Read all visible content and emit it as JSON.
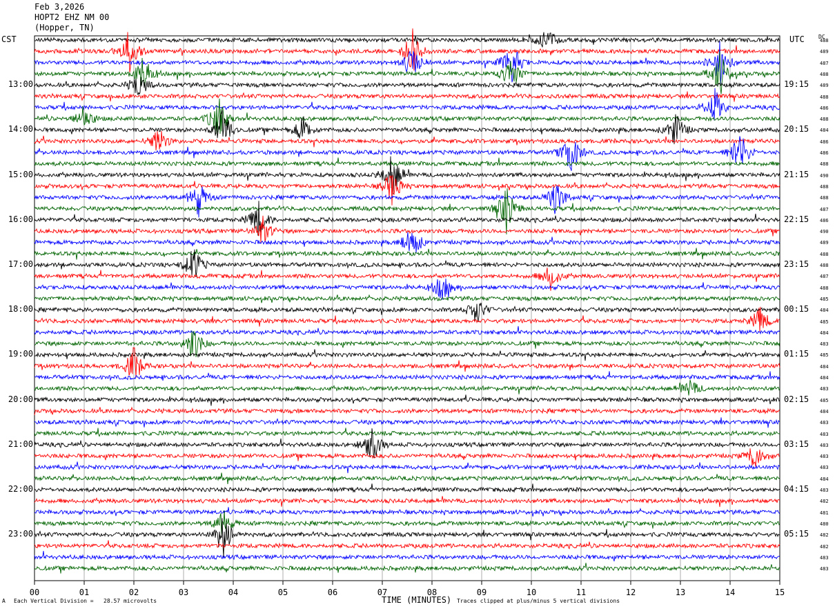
{
  "header": {
    "date": "Feb 3,2026",
    "station": "HOPT2 EHZ NM 00",
    "location": "(Hopper, TN)"
  },
  "labels": {
    "left_tz": "CST",
    "right_tz": "UTC",
    "dc": "DC",
    "x_title": "TIME (MINUTES)",
    "scale_note": "Each Vertical Division =   28.57 microvolts",
    "clip_note": "Traces clipped at plus/minus 5 vertical divisions",
    "corner_mark": "A"
  },
  "chart_data": {
    "type": "line",
    "title": "",
    "xlabel": "TIME (MINUTES)",
    "xlim": [
      0,
      15
    ],
    "x_ticks": [
      "00",
      "01",
      "02",
      "03",
      "04",
      "05",
      "06",
      "07",
      "08",
      "09",
      "10",
      "11",
      "12",
      "13",
      "14",
      "15"
    ],
    "colors": [
      "#000000",
      "#ff0000",
      "#0000ff",
      "#006400"
    ],
    "trace_count": 48,
    "left_hours": [
      "13:00",
      "14:00",
      "15:00",
      "16:00",
      "17:00",
      "18:00",
      "19:00",
      "20:00",
      "21:00",
      "22:00",
      "23:00"
    ],
    "right_hours": [
      "19:15",
      "20:15",
      "21:15",
      "22:15",
      "23:15",
      "00:15",
      "01:15",
      "02:15",
      "03:15",
      "04:15",
      "05:15"
    ],
    "dc_offsets": [
      "488",
      "489",
      "487",
      "488",
      "489",
      "488",
      "486",
      "488",
      "484",
      "486",
      "486",
      "488",
      "490",
      "488",
      "488",
      "487",
      "486",
      "490",
      "489",
      "488",
      "488",
      "487",
      "488",
      "485",
      "484",
      "485",
      "484",
      "483",
      "485",
      "484",
      "484",
      "483",
      "485",
      "484",
      "483",
      "483",
      "483",
      "483",
      "483",
      "484",
      "483",
      "482",
      "481",
      "480",
      "482",
      "482",
      "483",
      "483"
    ],
    "events": [
      {
        "trace": 1,
        "minute": 1.9,
        "amp": 5
      },
      {
        "trace": 3,
        "minute": 2.2,
        "amp": 4
      },
      {
        "trace": 4,
        "minute": 2.1,
        "amp": 3
      },
      {
        "trace": 1,
        "minute": 7.6,
        "amp": 5
      },
      {
        "trace": 2,
        "minute": 7.6,
        "amp": 4
      },
      {
        "trace": 2,
        "minute": 9.6,
        "amp": 5
      },
      {
        "trace": 3,
        "minute": 9.6,
        "amp": 4
      },
      {
        "trace": 0,
        "minute": 10.3,
        "amp": 3
      },
      {
        "trace": 2,
        "minute": 13.8,
        "amp": 5
      },
      {
        "trace": 3,
        "minute": 13.8,
        "amp": 5
      },
      {
        "trace": 6,
        "minute": 13.7,
        "amp": 4
      },
      {
        "trace": 7,
        "minute": 1.0,
        "amp": 3
      },
      {
        "trace": 7,
        "minute": 3.7,
        "amp": 5
      },
      {
        "trace": 8,
        "minute": 3.8,
        "amp": 5
      },
      {
        "trace": 8,
        "minute": 5.4,
        "amp": 3
      },
      {
        "trace": 8,
        "minute": 12.9,
        "amp": 4
      },
      {
        "trace": 9,
        "minute": 2.5,
        "amp": 3
      },
      {
        "trace": 10,
        "minute": 10.8,
        "amp": 5
      },
      {
        "trace": 10,
        "minute": 14.2,
        "amp": 5
      },
      {
        "trace": 12,
        "minute": 7.2,
        "amp": 5
      },
      {
        "trace": 13,
        "minute": 7.2,
        "amp": 4
      },
      {
        "trace": 14,
        "minute": 3.3,
        "amp": 4
      },
      {
        "trace": 14,
        "minute": 10.5,
        "amp": 4
      },
      {
        "trace": 15,
        "minute": 9.5,
        "amp": 5
      },
      {
        "trace": 16,
        "minute": 4.5,
        "amp": 4
      },
      {
        "trace": 17,
        "minute": 4.6,
        "amp": 3
      },
      {
        "trace": 18,
        "minute": 7.6,
        "amp": 4
      },
      {
        "trace": 20,
        "minute": 3.2,
        "amp": 4
      },
      {
        "trace": 21,
        "minute": 10.4,
        "amp": 3
      },
      {
        "trace": 22,
        "minute": 8.2,
        "amp": 3
      },
      {
        "trace": 24,
        "minute": 8.9,
        "amp": 3
      },
      {
        "trace": 25,
        "minute": 14.6,
        "amp": 3
      },
      {
        "trace": 27,
        "minute": 3.2,
        "amp": 4
      },
      {
        "trace": 29,
        "minute": 2.0,
        "amp": 4
      },
      {
        "trace": 31,
        "minute": 13.2,
        "amp": 2
      },
      {
        "trace": 36,
        "minute": 6.8,
        "amp": 4
      },
      {
        "trace": 37,
        "minute": 14.5,
        "amp": 3
      },
      {
        "trace": 44,
        "minute": 3.8,
        "amp": 5
      },
      {
        "trace": 43,
        "minute": 3.8,
        "amp": 3
      }
    ]
  }
}
